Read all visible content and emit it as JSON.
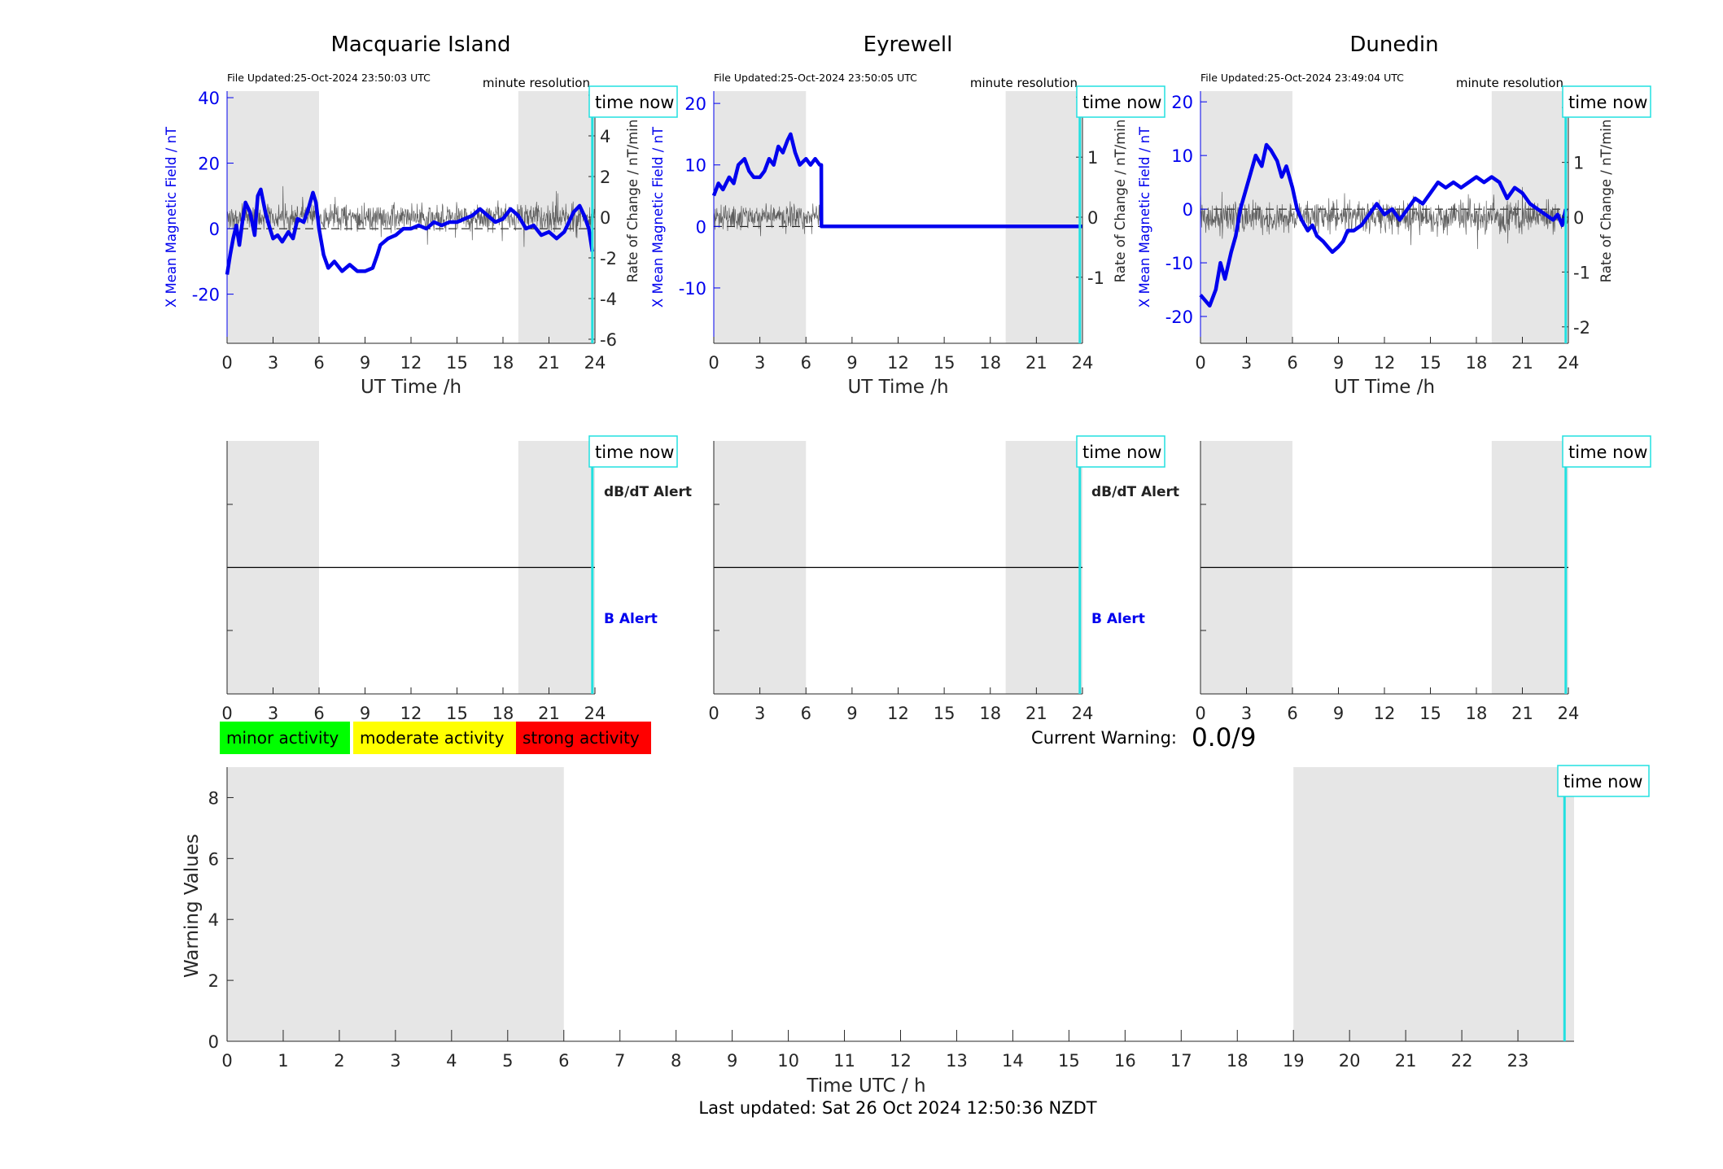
{
  "chart_data": [
    {
      "type": "line",
      "title": "Macquarie Island",
      "file_updated": "File Updated:25-Oct-2024 23:50:03 UTC",
      "resolution_label": "minute resolution",
      "time_now_label": "time now",
      "xlabel": "UT Time /h",
      "ylabel_left": "X Mean Magnetic Field / nT",
      "ylabel_right": "Rate of Change / nT/min",
      "xlim": [
        0,
        24
      ],
      "ylim_left": [
        -35,
        42
      ],
      "ylim_right": [
        -6.2,
        6.2
      ],
      "xticks": [
        0,
        3,
        6,
        9,
        12,
        15,
        18,
        21,
        24
      ],
      "yticks_left": [
        -20,
        0,
        20,
        40
      ],
      "yticks_right": [
        -6,
        -4,
        -2,
        0,
        2,
        4,
        6
      ],
      "night_shading": [
        [
          0,
          6
        ],
        [
          19,
          24
        ]
      ],
      "time_now": 23.83,
      "series": [
        {
          "axis": "left",
          "color": "#0000ee",
          "x": [
            0,
            0.2,
            0.4,
            0.6,
            0.8,
            1,
            1.2,
            1.5,
            1.8,
            2,
            2.2,
            2.5,
            2.8,
            3,
            3.3,
            3.6,
            4,
            4.3,
            4.6,
            5,
            5.3,
            5.6,
            5.8,
            6,
            6.3,
            6.6,
            7,
            7.5,
            8,
            8.5,
            9,
            9.5,
            9.8,
            10,
            10.5,
            11,
            11.5,
            12,
            12.5,
            13,
            13.5,
            14,
            14.5,
            15,
            15.5,
            16,
            16.5,
            17,
            17.5,
            18,
            18.5,
            19,
            19.5,
            20,
            20.5,
            21,
            21.5,
            22,
            22.3,
            22.6,
            23,
            23.3,
            23.6,
            23.83
          ],
          "y": [
            -14,
            -8,
            -3,
            1,
            -5,
            2,
            8,
            5,
            -2,
            10,
            12,
            5,
            0,
            -3,
            -2,
            -4,
            -1,
            -3,
            3,
            2,
            6,
            11,
            8,
            0,
            -8,
            -12,
            -10,
            -13,
            -11,
            -13,
            -13,
            -12,
            -8,
            -5,
            -3,
            -2,
            0,
            0,
            1,
            0,
            2,
            1,
            2,
            2,
            3,
            4,
            6,
            4,
            2,
            3,
            6,
            4,
            0,
            1,
            -2,
            -1,
            -3,
            -1,
            2,
            5,
            7,
            4,
            0,
            -7
          ]
        },
        {
          "axis": "right",
          "color": "#000000",
          "kind": "noise",
          "x_range": [
            0,
            24
          ],
          "amplitude": 0.8,
          "baseline": 0
        }
      ]
    },
    {
      "type": "line",
      "title": "Eyrewell",
      "file_updated": "File Updated:25-Oct-2024 23:50:05 UTC",
      "resolution_label": "minute resolution",
      "time_now_label": "time now",
      "xlabel": "UT Time /h",
      "ylabel_left": "X Mean Magnetic Field / nT",
      "ylabel_right": "Rate of Change / nT/min",
      "xlim": [
        0,
        24
      ],
      "ylim_left": [
        -19,
        22
      ],
      "ylim_right": [
        -2.1,
        2.1
      ],
      "xticks": [
        0,
        3,
        6,
        9,
        12,
        15,
        18,
        21,
        24
      ],
      "yticks_left": [
        -10,
        0,
        10,
        20
      ],
      "yticks_right": [
        -1,
        0,
        1,
        2
      ],
      "night_shading": [
        [
          0,
          6
        ],
        [
          19,
          24
        ]
      ],
      "time_now": 23.83,
      "series": [
        {
          "axis": "left",
          "color": "#0000ee",
          "x": [
            0,
            0.3,
            0.6,
            1,
            1.3,
            1.6,
            2,
            2.3,
            2.6,
            3,
            3.3,
            3.6,
            3.9,
            4.2,
            4.5,
            4.8,
            5,
            5.3,
            5.6,
            6,
            6.3,
            6.6,
            6.9,
            7,
            7.01,
            24
          ],
          "y": [
            5,
            7,
            6,
            8,
            7,
            10,
            11,
            9,
            8,
            8,
            9,
            11,
            10,
            13,
            12,
            14,
            15,
            12,
            10,
            11,
            10,
            11,
            10,
            10,
            0,
            0
          ]
        },
        {
          "axis": "right",
          "color": "#000000",
          "kind": "noise",
          "x_range": [
            0,
            7
          ],
          "amplitude": 0.25,
          "baseline": 0
        }
      ]
    },
    {
      "type": "line",
      "title": "Dunedin",
      "file_updated": "File Updated:25-Oct-2024 23:49:04 UTC",
      "resolution_label": "minute resolution",
      "time_now_label": "time now",
      "xlabel": "UT Time /h",
      "ylabel_left": "X Mean Magnetic Field / nT",
      "ylabel_right": "Rate of Change / nT/min",
      "xlim": [
        0,
        24
      ],
      "ylim_left": [
        -25,
        22
      ],
      "ylim_right": [
        -2.3,
        2.3
      ],
      "xticks": [
        0,
        3,
        6,
        9,
        12,
        15,
        18,
        21,
        24
      ],
      "yticks_left": [
        -20,
        -10,
        0,
        10,
        20
      ],
      "yticks_right": [
        -2,
        -1,
        0,
        1,
        2
      ],
      "night_shading": [
        [
          0,
          6
        ],
        [
          19,
          24
        ]
      ],
      "time_now": 23.83,
      "series": [
        {
          "axis": "left",
          "color": "#0000ee",
          "x": [
            0,
            0.3,
            0.6,
            1,
            1.3,
            1.6,
            2,
            2.3,
            2.6,
            3,
            3.3,
            3.6,
            4,
            4.3,
            4.6,
            5,
            5.3,
            5.6,
            6,
            6.3,
            6.6,
            7,
            7.3,
            7.6,
            8,
            8.3,
            8.6,
            9,
            9.3,
            9.6,
            10,
            10.5,
            11,
            11.5,
            12,
            12.5,
            13,
            13.5,
            14,
            14.5,
            15,
            15.5,
            16,
            16.5,
            17,
            17.5,
            18,
            18.5,
            19,
            19.5,
            20,
            20.5,
            21,
            21.5,
            22,
            22.5,
            23,
            23.3,
            23.6,
            23.83
          ],
          "y": [
            -16,
            -17,
            -18,
            -15,
            -10,
            -13,
            -8,
            -5,
            0,
            4,
            7,
            10,
            8,
            12,
            11,
            9,
            6,
            8,
            4,
            0,
            -2,
            -4,
            -3,
            -5,
            -6,
            -7,
            -8,
            -7,
            -6,
            -4,
            -4,
            -3,
            -1,
            1,
            -1,
            0,
            -2,
            0,
            2,
            1,
            3,
            5,
            4,
            5,
            4,
            5,
            6,
            5,
            6,
            5,
            2,
            4,
            3,
            1,
            0,
            -1,
            -2,
            -1,
            -3,
            0
          ]
        },
        {
          "axis": "right",
          "color": "#000000",
          "kind": "noise",
          "x_range": [
            0,
            24
          ],
          "amplitude": 0.35,
          "baseline": 0
        }
      ]
    },
    {
      "type": "line",
      "panel": "alerts-macquarie",
      "xlim": [
        0,
        24
      ],
      "xticks": [
        0,
        3,
        6,
        9,
        12,
        15,
        18,
        21,
        24
      ],
      "night_shading": [
        [
          0,
          6
        ],
        [
          19,
          24
        ]
      ],
      "time_now": 23.83,
      "time_now_label": "time now",
      "dbdt_label": "dB/dT Alert",
      "b_label": "B Alert"
    },
    {
      "type": "line",
      "panel": "alerts-eyrewell",
      "xlim": [
        0,
        24
      ],
      "xticks": [
        0,
        3,
        6,
        9,
        12,
        15,
        18,
        21,
        24
      ],
      "night_shading": [
        [
          0,
          6
        ],
        [
          19,
          24
        ]
      ],
      "time_now": 23.83,
      "time_now_label": "time now",
      "dbdt_label": "dB/dT Alert",
      "b_label": "B Alert"
    },
    {
      "type": "line",
      "panel": "alerts-dunedin",
      "xlim": [
        0,
        24
      ],
      "xticks": [
        0,
        3,
        6,
        9,
        12,
        15,
        18,
        21,
        24
      ],
      "night_shading": [
        [
          0,
          6
        ],
        [
          19,
          24
        ]
      ],
      "time_now": 23.83,
      "time_now_label": "time now"
    },
    {
      "type": "bar",
      "panel": "warning-history",
      "xlabel": "Time UTC / h",
      "ylabel": "Warning Values",
      "xlim": [
        0,
        24
      ],
      "ylim": [
        0,
        9
      ],
      "xticks": [
        0,
        1,
        2,
        3,
        4,
        5,
        6,
        7,
        8,
        9,
        10,
        11,
        12,
        13,
        14,
        15,
        16,
        17,
        18,
        19,
        20,
        21,
        22,
        23
      ],
      "yticks": [
        0,
        2,
        4,
        6,
        8
      ],
      "night_shading": [
        [
          0,
          6
        ],
        [
          19,
          24
        ]
      ],
      "time_now": 23.83,
      "time_now_label": "time now",
      "values": []
    }
  ],
  "legend": {
    "items": [
      {
        "label": "minor activity",
        "color": "#00ff00"
      },
      {
        "label": "moderate activity",
        "color": "#ffff00"
      },
      {
        "label": "strong activity",
        "color": "#ff0000"
      }
    ]
  },
  "current_warning": {
    "label": "Current Warning:",
    "value": "0.0/9"
  },
  "footer": {
    "last_updated": "Last updated: Sat 26 Oct 2024 12:50:36 NZDT"
  },
  "colors": {
    "field": "#0000ee",
    "time_now": "#22e0e0",
    "night": "#e6e6e6",
    "b_alert": "#0000ee"
  }
}
